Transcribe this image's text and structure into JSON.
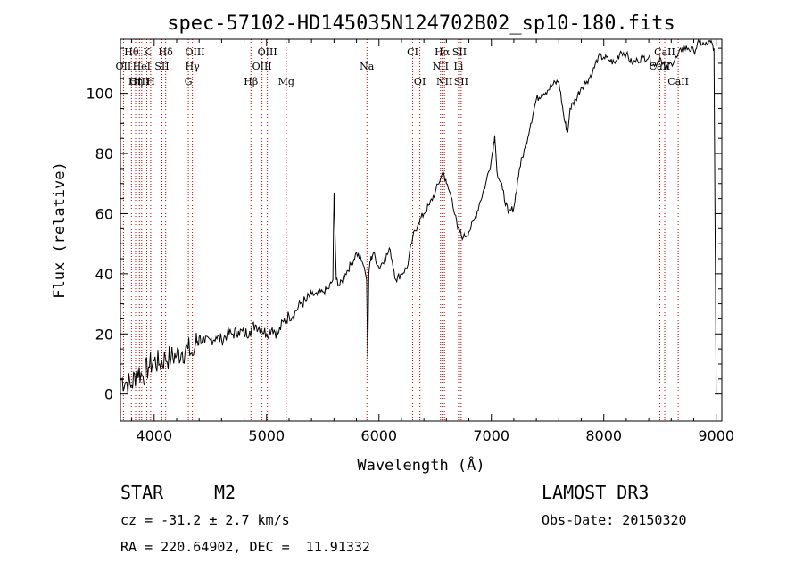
{
  "chart_data": {
    "type": "line",
    "title": "spec-57102-HD145035N124702B02_sp10-180.fits",
    "xlabel": "Wavelength (Å)",
    "ylabel": "Flux (relative)",
    "xlim": [
      3700,
      9050
    ],
    "ylim": [
      -9,
      118
    ],
    "xticks": [
      4000,
      5000,
      6000,
      7000,
      8000,
      9000
    ],
    "yticks": [
      0,
      20,
      40,
      60,
      80,
      100
    ],
    "grid": false,
    "series": [
      {
        "name": "spectrum",
        "x": [
          3700,
          3750,
          3800,
          3850,
          3900,
          3950,
          4000,
          4050,
          4100,
          4150,
          4200,
          4250,
          4300,
          4350,
          4370,
          4400,
          4450,
          4500,
          4550,
          4600,
          4650,
          4700,
          4750,
          4800,
          4850,
          4900,
          4950,
          5000,
          5050,
          5100,
          5150,
          5200,
          5250,
          5300,
          5350,
          5400,
          5450,
          5500,
          5550,
          5590,
          5600,
          5620,
          5650,
          5700,
          5750,
          5800,
          5850,
          5870,
          5890,
          5900,
          5910,
          5920,
          5950,
          6000,
          6050,
          6100,
          6150,
          6200,
          6250,
          6300,
          6350,
          6400,
          6450,
          6500,
          6550,
          6570,
          6600,
          6650,
          6700,
          6750,
          6800,
          6850,
          6900,
          6950,
          7000,
          7030,
          7050,
          7100,
          7150,
          7200,
          7250,
          7300,
          7350,
          7400,
          7450,
          7500,
          7550,
          7600,
          7650,
          7680,
          7700,
          7750,
          7800,
          7850,
          7900,
          7950,
          8000,
          8050,
          8100,
          8150,
          8200,
          8250,
          8300,
          8350,
          8400,
          8450,
          8500,
          8550,
          8600,
          8650,
          8700,
          8750,
          8800,
          8850,
          8900,
          8950,
          8980,
          9000
        ],
        "y": [
          5,
          4,
          3,
          8,
          6,
          9,
          11,
          10,
          12,
          12,
          13,
          14,
          15,
          13,
          17,
          19,
          17,
          18,
          19,
          18,
          20,
          20,
          21,
          20,
          21,
          23,
          22,
          20,
          22,
          20,
          24,
          26,
          27,
          30,
          31,
          33,
          33,
          34,
          35,
          38,
          67,
          38,
          36,
          40,
          43,
          47,
          44,
          42,
          38,
          12,
          40,
          44,
          47,
          42,
          45,
          48,
          38,
          40,
          42,
          52,
          57,
          60,
          63,
          67,
          72,
          74,
          70,
          65,
          55,
          52,
          54,
          58,
          64,
          70,
          78,
          86,
          74,
          68,
          60,
          62,
          75,
          82,
          90,
          98,
          100,
          101,
          103,
          104,
          91,
          87,
          95,
          98,
          102,
          104,
          107,
          112,
          112,
          111,
          110,
          114,
          113,
          110,
          111,
          112,
          112,
          109,
          112,
          108,
          110,
          112,
          115,
          115,
          114,
          117,
          116,
          117,
          115,
          0
        ]
      }
    ],
    "emission_lines": [
      {
        "label": "Hθ",
        "wl": 3798,
        "row": 1
      },
      {
        "label": "OII",
        "wl": 3727,
        "row": 2
      },
      {
        "label": "OIII",
        "wl": 3869,
        "row": 3
      },
      {
        "label": "K",
        "wl": 3934,
        "row": 1
      },
      {
        "label": "HeI",
        "wl": 3889,
        "row": 2
      },
      {
        "label": "Hη",
        "wl": 3835,
        "row": 3
      },
      {
        "label": "H",
        "wl": 3969,
        "row": 3
      },
      {
        "label": "Hδ",
        "wl": 4102,
        "row": 1
      },
      {
        "label": "SII",
        "wl": 4069,
        "row": 2
      },
      {
        "label": "OIII",
        "wl": 4363,
        "row": 1
      },
      {
        "label": "Hγ",
        "wl": 4340,
        "row": 2
      },
      {
        "label": "G",
        "wl": 4304,
        "row": 3
      },
      {
        "label": "Hβ",
        "wl": 4861,
        "row": 3
      },
      {
        "label": "OIII",
        "wl": 5007,
        "row": 1
      },
      {
        "label": "OIII",
        "wl": 4959,
        "row": 2
      },
      {
        "label": "Mg",
        "wl": 5175,
        "row": 3
      },
      {
        "label": "Na",
        "wl": 5893,
        "row": 2
      },
      {
        "label": "CI",
        "wl": 6300,
        "row": 1
      },
      {
        "label": "OI",
        "wl": 6364,
        "row": 3
      },
      {
        "label": "Hα",
        "wl": 6563,
        "row": 1
      },
      {
        "label": "SII",
        "wl": 6716,
        "row": 1
      },
      {
        "label": "NII",
        "wl": 6548,
        "row": 2
      },
      {
        "label": "Li",
        "wl": 6708,
        "row": 2
      },
      {
        "label": "NII",
        "wl": 6583,
        "row": 3
      },
      {
        "label": "SII",
        "wl": 6731,
        "row": 3
      },
      {
        "label": "CaII",
        "wl": 8542,
        "row": 1
      },
      {
        "label": "CaII",
        "wl": 8498,
        "row": 2
      },
      {
        "label": "CaII",
        "wl": 8662,
        "row": 3
      }
    ]
  },
  "info": {
    "object_class": "STAR",
    "subclass": "M2",
    "survey": "LAMOST DR3",
    "cz": "cz = -31.2 ± 2.7 km/s",
    "obs_date": "Obs-Date: 20150320",
    "coords": "RA = 220.64902, DEC =  11.91332"
  },
  "colors": {
    "line_marker": "#c00000",
    "spectrum": "#000000"
  }
}
